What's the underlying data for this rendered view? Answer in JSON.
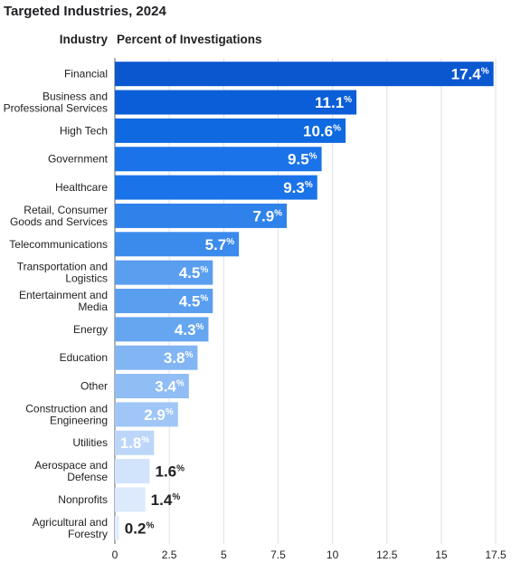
{
  "title": "Targeted Industries, 2024",
  "column_headers": {
    "industry": "Industry",
    "percent": "Percent of Investigations"
  },
  "chart_data": {
    "type": "bar",
    "orientation": "horizontal",
    "title": "Targeted Industries, 2024",
    "xlabel": "Percent of Investigations",
    "ylabel": "Industry",
    "xlim": [
      0,
      17.5
    ],
    "xticks": [
      "0",
      "2.5",
      "5",
      "7.5",
      "10",
      "12.5",
      "15",
      "17.5"
    ],
    "grid": "vertical",
    "categories": [
      [
        "Financial"
      ],
      [
        "Business and",
        "Professional Services"
      ],
      [
        "High Tech"
      ],
      [
        "Government"
      ],
      [
        "Healthcare"
      ],
      [
        "Retail, Consumer",
        "Goods and Services"
      ],
      [
        "Telecommunications"
      ],
      [
        "Transportation and",
        "Logistics"
      ],
      [
        "Entertainment and",
        "Media"
      ],
      [
        "Energy"
      ],
      [
        "Education"
      ],
      [
        "Other"
      ],
      [
        "Construction and",
        "Engineering"
      ],
      [
        "Utilities"
      ],
      [
        "Aerospace and",
        "Defense"
      ],
      [
        "Nonprofits"
      ],
      [
        "Agricultural and",
        "Forestry"
      ]
    ],
    "values": [
      17.4,
      11.1,
      10.6,
      9.5,
      9.3,
      7.9,
      5.7,
      4.5,
      4.5,
      4.3,
      3.8,
      3.4,
      2.9,
      1.8,
      1.6,
      1.4,
      0.2
    ],
    "value_labels": [
      "17.4",
      "11.1",
      "10.6",
      "9.5",
      "9.3",
      "7.9",
      "5.7",
      "4.5",
      "4.5",
      "4.3",
      "3.8",
      "3.4",
      "2.9",
      "1.8",
      "1.6",
      "1.4",
      "0.2"
    ],
    "unit_symbol": "%",
    "colors": [
      "#0b57d0",
      "#0b5ed7",
      "#0f69e0",
      "#1a73e8",
      "#1a73e8",
      "#2f82ea",
      "#3b8bec",
      "#5a9ef0",
      "#5a9ef0",
      "#66a6f1",
      "#82b5f3",
      "#8fbdf4",
      "#9fc6f6",
      "#bcd6f9",
      "#d2e3fc",
      "#dde9fd",
      "#e3edfd"
    ],
    "label_colors": [
      "#ffffff",
      "#ffffff",
      "#ffffff",
      "#ffffff",
      "#ffffff",
      "#ffffff",
      "#ffffff",
      "#ffffff",
      "#ffffff",
      "#ffffff",
      "#ffffff",
      "#ffffff",
      "#ffffff",
      "#ffffff",
      "#202124",
      "#202124",
      "#202124"
    ],
    "label_inside": [
      true,
      true,
      true,
      true,
      true,
      true,
      true,
      true,
      true,
      true,
      true,
      true,
      true,
      true,
      false,
      false,
      false
    ]
  }
}
